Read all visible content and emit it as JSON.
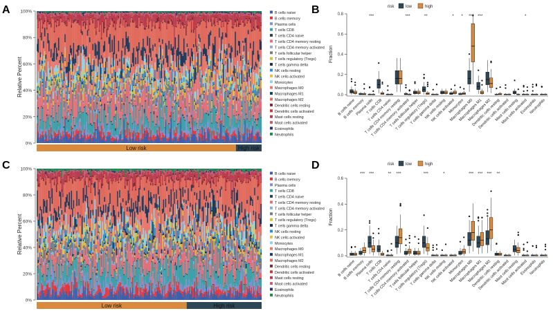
{
  "figure": {
    "panel_labels": [
      "A",
      "B",
      "C",
      "D"
    ]
  },
  "cell_types": [
    "B cells naive",
    "B cells memory",
    "Plasma cells",
    "T cells CD8",
    "T cells CD4 naive",
    "T cells CD4 memory resting",
    "T cells CD4 memory activated",
    "T cells follicular helper",
    "T cells regulatory (Tregs)",
    "T cells gamma delta",
    "NK cells resting",
    "NK cells activated",
    "Monocytes",
    "Macrophages M0",
    "Macrophages M1",
    "Macrophages M2",
    "Dendritic cells resting",
    "Dendritic cells activated",
    "Mast cells resting",
    "Mast cells activated",
    "Eosinophils",
    "Neutrophils"
  ],
  "chart_data": [
    {
      "id": "A",
      "type": "bar",
      "stacked": true,
      "ylabel": "Relative Percent",
      "yticks": [
        "0%",
        "20%",
        "40%",
        "60%",
        "80%",
        "100%"
      ],
      "ylim": [
        0,
        100
      ],
      "n_samples": 210,
      "groups": [
        {
          "label": "Low risk",
          "count": 186,
          "color": "#d98a3c"
        },
        {
          "label": "High risk",
          "count": 24,
          "color": "#2e4756"
        }
      ],
      "legend_position": "right",
      "series_colors": [
        "#3d5fa8",
        "#e6373a",
        "#7f8fd0",
        "#3fa0a8",
        "#2c3e58",
        "#e2707a",
        "#8faee0",
        "#7b7b7b",
        "#d4c13b",
        "#1f2f43",
        "#2a8fcf",
        "#e4c24a",
        "#8cd3e8",
        "#e8796f",
        "#203a5c",
        "#e06a5c",
        "#7a2b3b",
        "#c8383e",
        "#b73b4f",
        "#c15f6e",
        "#2f2f6f",
        "#1f8b4c"
      ],
      "mean_composition": [
        3,
        2,
        2,
        7,
        0.5,
        10,
        1,
        3,
        2,
        0.5,
        2,
        2,
        3,
        6,
        5,
        14,
        1,
        1,
        3,
        1,
        0.5,
        0.5
      ],
      "sample_variability": 0.7
    },
    {
      "id": "B",
      "type": "box",
      "ylabel": "Fraction",
      "ylim": [
        0,
        0.8
      ],
      "yticks": [
        "0.0",
        "0.2",
        "0.4",
        "0.6",
        "0.8"
      ],
      "legend_title": "risk",
      "groups": [
        {
          "name": "low",
          "color": "#2e4756"
        },
        {
          "name": "high",
          "color": "#d98a3c"
        }
      ],
      "significance": [
        "",
        "",
        "***",
        "",
        "",
        "",
        "***",
        "",
        "**",
        "",
        "",
        "*",
        "*",
        "***",
        "***",
        "",
        "",
        "",
        "",
        "*",
        "",
        ""
      ],
      "median_low": [
        0.03,
        0.005,
        0.0,
        0.1,
        0.0,
        0.16,
        0.005,
        0.02,
        0.05,
        0.0,
        0.02,
        0.01,
        0.005,
        0.16,
        0.08,
        0.15,
        0.0,
        0.0,
        0.02,
        0.0,
        0.0,
        0.0
      ],
      "median_high": [
        0.02,
        0.005,
        0.0,
        0.01,
        0.0,
        0.16,
        0.0,
        0.02,
        0.01,
        0.0,
        0.02,
        0.02,
        0.01,
        0.48,
        0.02,
        0.11,
        0.005,
        0.0,
        0.0,
        0.0,
        0.0,
        0.0
      ]
    },
    {
      "id": "C",
      "type": "bar",
      "stacked": true,
      "ylabel": "Relative Percent",
      "yticks": [
        "0%",
        "20%",
        "40%",
        "60%",
        "80%",
        "100%"
      ],
      "ylim": [
        0,
        100
      ],
      "n_samples": 210,
      "groups": [
        {
          "label": "Low risk",
          "count": 140,
          "color": "#d98a3c"
        },
        {
          "label": "High risk",
          "count": 70,
          "color": "#2e4756"
        }
      ],
      "legend_position": "right",
      "series_colors": [
        "#3d5fa8",
        "#e6373a",
        "#7f8fd0",
        "#3fa0a8",
        "#2c3e58",
        "#e2707a",
        "#8faee0",
        "#7b7b7b",
        "#d4c13b",
        "#1f2f43",
        "#2a8fcf",
        "#e4c24a",
        "#8cd3e8",
        "#e8796f",
        "#203a5c",
        "#e06a5c",
        "#7a2b3b",
        "#c8383e",
        "#b73b4f",
        "#c15f6e",
        "#2f2f6f",
        "#1f8b4c"
      ],
      "mean_composition": [
        4,
        3,
        3,
        8,
        0.5,
        9,
        1,
        4,
        2,
        1,
        3,
        2,
        3,
        8,
        6,
        14,
        1,
        1,
        3,
        1,
        0.5,
        1
      ],
      "sample_variability": 0.7
    },
    {
      "id": "D",
      "type": "box",
      "ylabel": "Fraction",
      "ylim": [
        0,
        0.6
      ],
      "yticks": [
        "0.0",
        "0.2",
        "0.4",
        "0.6"
      ],
      "legend_title": "risk",
      "groups": [
        {
          "name": "low",
          "color": "#2e4756"
        },
        {
          "name": "high",
          "color": "#d98a3c"
        }
      ],
      "significance": [
        "",
        "***",
        "***",
        "",
        "**",
        "***",
        "",
        "",
        "***",
        "",
        "*",
        "",
        "",
        "***",
        "***",
        "***",
        "**",
        "",
        "",
        "",
        "",
        ""
      ],
      "median_low": [
        0.01,
        0.02,
        0.1,
        0.05,
        0.0,
        0.1,
        0.02,
        0.02,
        0.1,
        0.0,
        0.0,
        0.0,
        0.02,
        0.12,
        0.1,
        0.13,
        0.01,
        0.0,
        0.05,
        0.0,
        0.0,
        0.0
      ],
      "median_high": [
        0.01,
        0.04,
        0.05,
        0.01,
        0.0,
        0.14,
        0.03,
        0.02,
        0.06,
        0.0,
        0.0,
        0.0,
        0.03,
        0.18,
        0.12,
        0.2,
        0.01,
        0.0,
        0.04,
        0.0,
        0.0,
        0.0
      ]
    }
  ]
}
